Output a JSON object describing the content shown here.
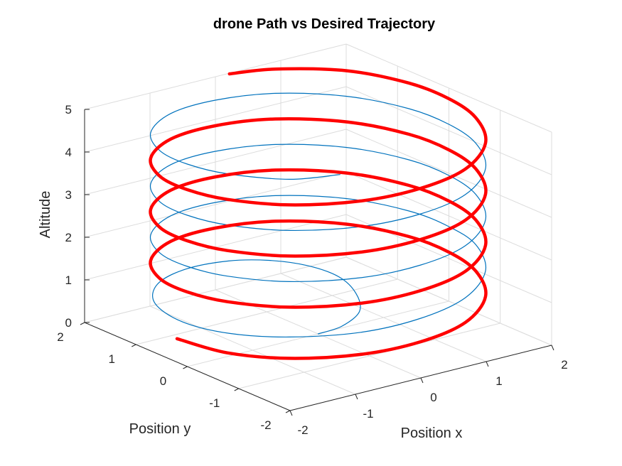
{
  "chart_data": {
    "type": "line",
    "projection": "3d",
    "title": "drone Path vs Desired Trajectory",
    "xlabel": "Position x",
    "ylabel": "Position y",
    "zlabel": "Altitude",
    "xlim": [
      -2,
      2
    ],
    "ylim": [
      -2,
      2
    ],
    "zlim": [
      0,
      5
    ],
    "xticks": [
      "-2",
      "-1",
      "0",
      "1",
      "2"
    ],
    "yticks": [
      "-2",
      "-1",
      "0",
      "1",
      "2"
    ],
    "zticks": [
      "0",
      "1",
      "2",
      "3",
      "4",
      "5"
    ],
    "grid": true,
    "legend": "none",
    "series": [
      {
        "color": "#0072bd",
        "line_width": "thin",
        "description_of_shape": "helix of radius 2 rising from z=0 to z=5 over 4.25 turns, starting at the center and spiralling out during the first turn",
        "points": [
          [
            0,
            0,
            0
          ],
          [
            0.32,
            -0.05,
            0.08
          ],
          [
            0.75,
            0.15,
            0.16
          ],
          [
            1.05,
            0.6,
            0.24
          ],
          [
            1.18,
            1.1,
            0.32
          ],
          [
            1.05,
            1.55,
            0.4
          ],
          [
            0.7,
            1.85,
            0.5
          ],
          [
            0.2,
            2.0,
            0.6
          ],
          [
            -0.5,
            1.95,
            0.7
          ],
          [
            -1.2,
            1.6,
            0.8
          ],
          [
            -1.75,
            0.95,
            0.9
          ],
          [
            -2.0,
            0.1,
            1.0
          ],
          [
            -1.9,
            -0.7,
            1.1
          ],
          [
            -1.5,
            -1.35,
            1.2
          ],
          [
            -0.8,
            -1.85,
            1.3
          ],
          [
            0,
            -2.0,
            1.4
          ],
          [
            0.8,
            -1.85,
            1.5
          ],
          [
            1.5,
            -1.35,
            1.6
          ],
          [
            1.9,
            -0.65,
            1.7
          ],
          [
            2.0,
            0,
            1.75
          ],
          [
            1.9,
            0.65,
            1.82
          ],
          [
            1.5,
            1.35,
            1.9
          ],
          [
            0.8,
            1.85,
            1.98
          ],
          [
            0,
            2.0,
            2.05
          ],
          [
            -0.8,
            1.85,
            2.12
          ],
          [
            -1.5,
            1.35,
            2.2
          ],
          [
            -1.9,
            0.65,
            2.28
          ],
          [
            -2.0,
            0,
            2.35
          ],
          [
            -1.9,
            -0.65,
            2.42
          ],
          [
            -1.5,
            -1.35,
            2.5
          ],
          [
            -0.8,
            -1.85,
            2.58
          ],
          [
            0,
            -2.0,
            2.65
          ],
          [
            0.8,
            -1.85,
            2.72
          ],
          [
            1.5,
            -1.35,
            2.8
          ],
          [
            1.9,
            -0.65,
            2.88
          ],
          [
            2.0,
            0,
            2.95
          ],
          [
            1.9,
            0.65,
            3.02
          ],
          [
            1.5,
            1.35,
            3.1
          ],
          [
            0.8,
            1.85,
            3.18
          ],
          [
            0,
            2.0,
            3.25
          ],
          [
            -0.8,
            1.85,
            3.32
          ],
          [
            -1.5,
            1.35,
            3.4
          ],
          [
            -1.9,
            0.65,
            3.48
          ],
          [
            -2.0,
            0,
            3.55
          ],
          [
            -1.9,
            -0.65,
            3.62
          ],
          [
            -1.5,
            -1.35,
            3.7
          ],
          [
            -0.8,
            -1.85,
            3.78
          ],
          [
            0,
            -2.0,
            3.85
          ],
          [
            0.8,
            -1.85,
            3.92
          ],
          [
            1.5,
            -1.35,
            4.0
          ],
          [
            1.9,
            -0.65,
            4.08
          ],
          [
            2.0,
            0,
            4.15
          ],
          [
            1.9,
            0.65,
            4.22
          ],
          [
            1.5,
            1.35,
            4.3
          ],
          [
            0.8,
            1.85,
            4.38
          ],
          [
            0,
            2.0,
            4.45
          ],
          [
            -0.8,
            1.85,
            4.52
          ],
          [
            -1.5,
            1.35,
            4.6
          ],
          [
            -1.9,
            0.65,
            4.68
          ],
          [
            -2.0,
            0,
            4.75
          ],
          [
            -1.9,
            -0.65,
            4.82
          ],
          [
            -1.5,
            -1.35,
            4.9
          ],
          [
            -1.0,
            -1.7,
            5.0
          ]
        ]
      },
      {
        "color": "#ff0000",
        "line_width": "thick",
        "description_of_shape": "helix of radius 2 rising from about z=0.5 to z=5, tracking the blue path",
        "points": [
          [
            -2.0,
            0.2,
            0.55
          ],
          [
            -1.9,
            -0.65,
            0.62
          ],
          [
            -1.5,
            -1.35,
            0.7
          ],
          [
            -0.8,
            -1.85,
            0.78
          ],
          [
            0,
            -2.0,
            0.85
          ],
          [
            0.8,
            -1.85,
            0.92
          ],
          [
            1.5,
            -1.35,
            1.0
          ],
          [
            1.9,
            -0.65,
            1.08
          ],
          [
            2.0,
            0,
            1.15
          ],
          [
            1.9,
            0.65,
            1.22
          ],
          [
            1.5,
            1.35,
            1.3
          ],
          [
            0.8,
            1.85,
            1.38
          ],
          [
            0,
            2.0,
            1.45
          ],
          [
            -0.8,
            1.85,
            1.52
          ],
          [
            -1.5,
            1.35,
            1.6
          ],
          [
            -1.9,
            0.65,
            1.68
          ],
          [
            -2.0,
            0,
            1.75
          ],
          [
            -1.9,
            -0.65,
            1.82
          ],
          [
            -1.5,
            -1.35,
            1.9
          ],
          [
            -0.8,
            -1.85,
            1.98
          ],
          [
            0,
            -2.0,
            2.05
          ],
          [
            0.8,
            -1.85,
            2.12
          ],
          [
            1.5,
            -1.35,
            2.2
          ],
          [
            1.9,
            -0.65,
            2.28
          ],
          [
            2.0,
            0,
            2.35
          ],
          [
            1.9,
            0.65,
            2.42
          ],
          [
            1.5,
            1.35,
            2.5
          ],
          [
            0.8,
            1.85,
            2.58
          ],
          [
            0,
            2.0,
            2.65
          ],
          [
            -0.8,
            1.85,
            2.72
          ],
          [
            -1.5,
            1.35,
            2.8
          ],
          [
            -1.9,
            0.65,
            2.88
          ],
          [
            -2.0,
            0,
            2.95
          ],
          [
            -1.9,
            -0.65,
            3.02
          ],
          [
            -1.5,
            -1.35,
            3.1
          ],
          [
            -0.8,
            -1.85,
            3.18
          ],
          [
            0,
            -2.0,
            3.25
          ],
          [
            0.8,
            -1.85,
            3.32
          ],
          [
            1.5,
            -1.35,
            3.4
          ],
          [
            1.9,
            -0.65,
            3.48
          ],
          [
            2.0,
            0,
            3.55
          ],
          [
            1.9,
            0.65,
            3.62
          ],
          [
            1.5,
            1.35,
            3.7
          ],
          [
            0.8,
            1.85,
            3.78
          ],
          [
            0,
            2.0,
            3.85
          ],
          [
            -0.8,
            1.85,
            3.92
          ],
          [
            -1.5,
            1.35,
            4.0
          ],
          [
            -1.9,
            0.65,
            4.08
          ],
          [
            -2.0,
            0,
            4.15
          ],
          [
            -1.9,
            -0.65,
            4.22
          ],
          [
            -1.5,
            -1.35,
            4.3
          ],
          [
            -0.8,
            -1.85,
            4.38
          ],
          [
            0,
            -2.0,
            4.45
          ],
          [
            0.8,
            -1.85,
            4.52
          ],
          [
            1.5,
            -1.35,
            4.6
          ],
          [
            1.9,
            -0.65,
            4.68
          ],
          [
            2.0,
            0,
            4.75
          ],
          [
            1.9,
            0.65,
            4.82
          ],
          [
            1.5,
            1.35,
            4.9
          ],
          [
            0.8,
            1.85,
            4.95
          ],
          [
            0.2,
            1.98,
            5.0
          ]
        ]
      }
    ]
  }
}
